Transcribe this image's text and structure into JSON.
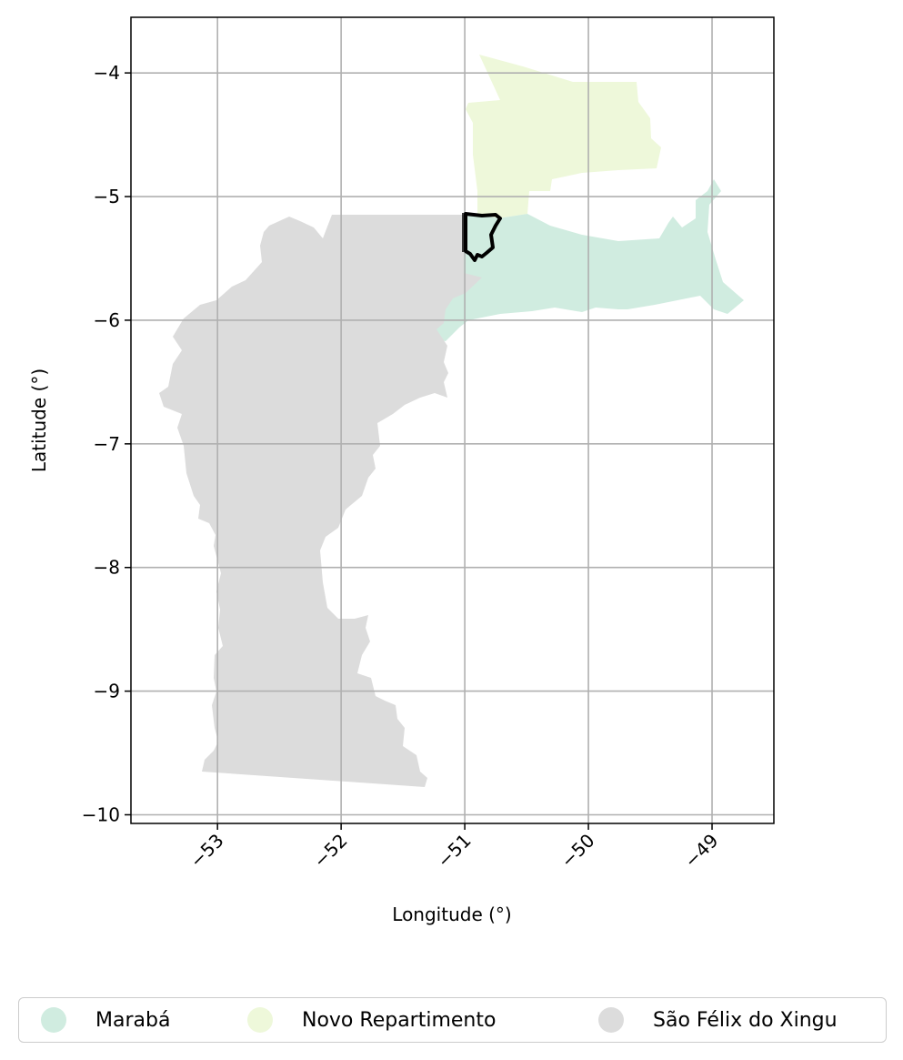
{
  "map": {
    "xlabel": "Longitude (°)",
    "ylabel": "Latitude (°)",
    "xlim": [
      -53.7,
      -48.5
    ],
    "ylim": [
      -10.07,
      -3.55
    ],
    "x_ticks": [
      -53,
      -52,
      -51,
      -50,
      -49
    ],
    "y_ticks": [
      -4,
      -5,
      -6,
      -7,
      -8,
      -9,
      -10
    ],
    "x_tick_labels": [
      "−53",
      "−52",
      "−51",
      "−50",
      "−49"
    ],
    "y_tick_labels": [
      "−4",
      "−5",
      "−6",
      "−7",
      "−8",
      "−9",
      "−10"
    ],
    "grid": true,
    "regions": [
      {
        "name": "Marabá",
        "color": "#d0ece0"
      },
      {
        "name": "Novo Repartimento",
        "color": "#eef8da"
      },
      {
        "name": "São Félix do Xingu",
        "color": "#dcdcdc"
      }
    ],
    "highlight_outline_color": "#000000"
  },
  "legend": {
    "placement": "bottom",
    "items": [
      {
        "label": "Marabá",
        "color": "#d0ece0"
      },
      {
        "label": "Novo Repartimento",
        "color": "#eef8da"
      },
      {
        "label": "São Félix do Xingu",
        "color": "#dcdcdc"
      }
    ]
  }
}
